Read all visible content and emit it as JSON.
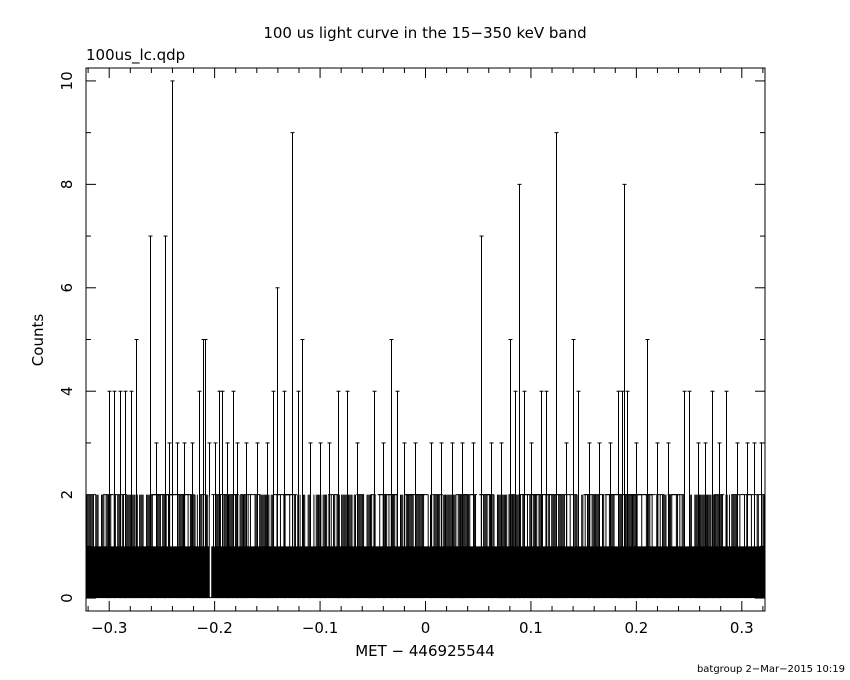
{
  "chart_data": {
    "type": "bar",
    "title": "100 us light curve in the 15−350 keV band",
    "subtitle": "100us_lc.qdp",
    "xlabel": "MET − 446925544",
    "ylabel": "Counts",
    "footer": "batgroup  2−Mar−2015 10:19",
    "xlim": [
      -0.322,
      0.322
    ],
    "ylim": [
      -0.25,
      10.25
    ],
    "xticks": [
      -0.3,
      -0.2,
      -0.1,
      0,
      0.1,
      0.2,
      0.3
    ],
    "xtick_labels": [
      "−0.3",
      "−0.2",
      "−0.1",
      "0",
      "0.1",
      "0.2",
      "0.3"
    ],
    "yticks": [
      0,
      2,
      4,
      6,
      8,
      10
    ],
    "ytick_labels": [
      "0",
      "2",
      "4",
      "6",
      "8",
      "10"
    ],
    "bin_width": 0.0001,
    "baseline_counts": 1,
    "peaks": [
      {
        "x": -0.3,
        "y": 4
      },
      {
        "x": -0.295,
        "y": 4
      },
      {
        "x": -0.29,
        "y": 4
      },
      {
        "x": -0.285,
        "y": 4
      },
      {
        "x": -0.279,
        "y": 4
      },
      {
        "x": -0.275,
        "y": 5
      },
      {
        "x": -0.261,
        "y": 7
      },
      {
        "x": -0.256,
        "y": 3
      },
      {
        "x": -0.247,
        "y": 7
      },
      {
        "x": -0.243,
        "y": 3
      },
      {
        "x": -0.24,
        "y": 10
      },
      {
        "x": -0.236,
        "y": 3
      },
      {
        "x": -0.229,
        "y": 3
      },
      {
        "x": -0.221,
        "y": 3
      },
      {
        "x": -0.215,
        "y": 4
      },
      {
        "x": -0.211,
        "y": 5
      },
      {
        "x": -0.209,
        "y": 5
      },
      {
        "x": -0.205,
        "y": 3
      },
      {
        "x": -0.2,
        "y": 3
      },
      {
        "x": -0.196,
        "y": 4
      },
      {
        "x": -0.193,
        "y": 4
      },
      {
        "x": -0.188,
        "y": 3
      },
      {
        "x": -0.183,
        "y": 4
      },
      {
        "x": -0.179,
        "y": 3
      },
      {
        "x": -0.17,
        "y": 3
      },
      {
        "x": -0.16,
        "y": 3
      },
      {
        "x": -0.15,
        "y": 3
      },
      {
        "x": -0.145,
        "y": 4
      },
      {
        "x": -0.141,
        "y": 6
      },
      {
        "x": -0.134,
        "y": 4
      },
      {
        "x": -0.127,
        "y": 9
      },
      {
        "x": -0.121,
        "y": 4
      },
      {
        "x": -0.117,
        "y": 5
      },
      {
        "x": -0.11,
        "y": 3
      },
      {
        "x": -0.1,
        "y": 3
      },
      {
        "x": -0.092,
        "y": 3
      },
      {
        "x": -0.083,
        "y": 4
      },
      {
        "x": -0.074,
        "y": 4
      },
      {
        "x": -0.065,
        "y": 3
      },
      {
        "x": -0.049,
        "y": 4
      },
      {
        "x": -0.04,
        "y": 3
      },
      {
        "x": -0.033,
        "y": 5
      },
      {
        "x": -0.027,
        "y": 4
      },
      {
        "x": -0.02,
        "y": 3
      },
      {
        "x": -0.01,
        "y": 3
      },
      {
        "x": 0.005,
        "y": 3
      },
      {
        "x": 0.015,
        "y": 3
      },
      {
        "x": 0.025,
        "y": 3
      },
      {
        "x": 0.035,
        "y": 3
      },
      {
        "x": 0.045,
        "y": 3
      },
      {
        "x": 0.053,
        "y": 7
      },
      {
        "x": 0.062,
        "y": 3
      },
      {
        "x": 0.072,
        "y": 3
      },
      {
        "x": 0.08,
        "y": 5
      },
      {
        "x": 0.085,
        "y": 4
      },
      {
        "x": 0.089,
        "y": 8
      },
      {
        "x": 0.093,
        "y": 4
      },
      {
        "x": 0.1,
        "y": 3
      },
      {
        "x": 0.11,
        "y": 4
      },
      {
        "x": 0.114,
        "y": 4
      },
      {
        "x": 0.124,
        "y": 9
      },
      {
        "x": 0.133,
        "y": 3
      },
      {
        "x": 0.14,
        "y": 5
      },
      {
        "x": 0.145,
        "y": 4
      },
      {
        "x": 0.155,
        "y": 3
      },
      {
        "x": 0.165,
        "y": 3
      },
      {
        "x": 0.175,
        "y": 3
      },
      {
        "x": 0.183,
        "y": 4
      },
      {
        "x": 0.186,
        "y": 4
      },
      {
        "x": 0.188,
        "y": 8
      },
      {
        "x": 0.191,
        "y": 4
      },
      {
        "x": 0.2,
        "y": 3
      },
      {
        "x": 0.21,
        "y": 5
      },
      {
        "x": 0.22,
        "y": 3
      },
      {
        "x": 0.23,
        "y": 3
      },
      {
        "x": 0.245,
        "y": 4
      },
      {
        "x": 0.25,
        "y": 4
      },
      {
        "x": 0.258,
        "y": 3
      },
      {
        "x": 0.265,
        "y": 3
      },
      {
        "x": 0.272,
        "y": 4
      },
      {
        "x": 0.278,
        "y": 3
      },
      {
        "x": 0.285,
        "y": 4
      },
      {
        "x": 0.295,
        "y": 3
      },
      {
        "x": 0.305,
        "y": 3
      },
      {
        "x": 0.312,
        "y": 3
      },
      {
        "x": 0.318,
        "y": 3
      }
    ],
    "gaps": [
      -0.204
    ],
    "bar_color": "#000000",
    "grid": false
  }
}
